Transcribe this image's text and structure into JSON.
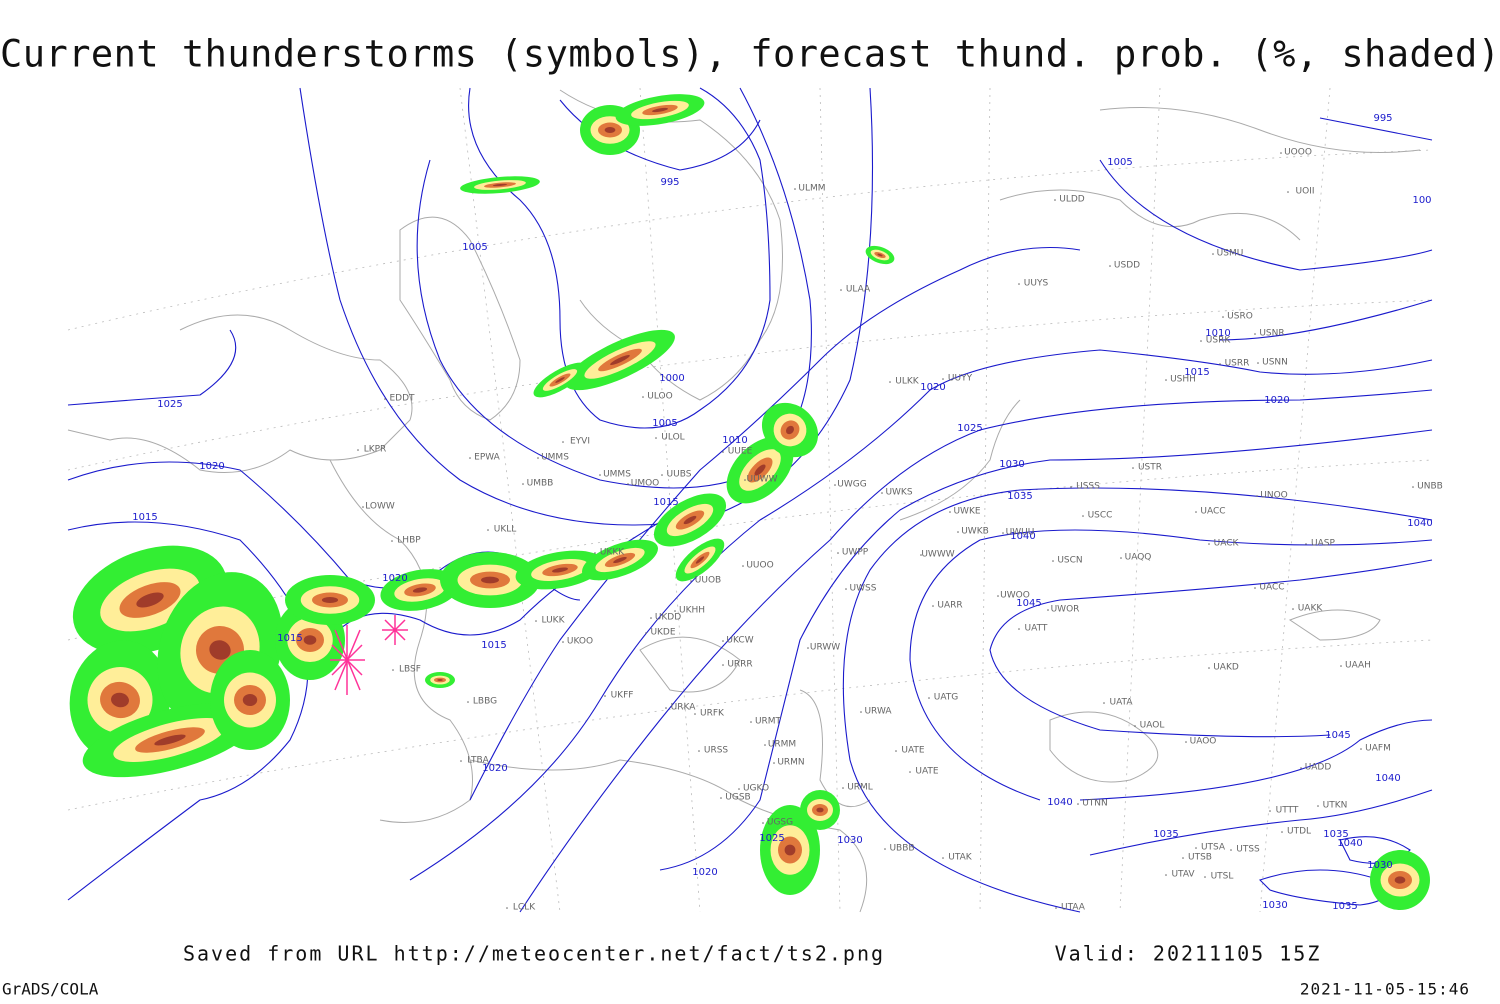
{
  "title": "Current thunderstorms (symbols), forecast thund. prob. (%, shaded)",
  "footer": {
    "saved": "Saved from URL http://meteocenter.net/fact/ts2.png",
    "valid": "Valid: 20211105 15Z",
    "software": "GrADS/COLA",
    "timestamp": "2021-11-05-15:46"
  },
  "isobar_labels": [
    "995",
    "995",
    "1005",
    "1005",
    "1000",
    "1005",
    "1010",
    "1015",
    "1015",
    "1015",
    "1015",
    "1020",
    "1020",
    "1020",
    "1020",
    "1025",
    "1025",
    "1020",
    "1010",
    "1015",
    "1020",
    "1030",
    "1035",
    "1040",
    "1045",
    "1040",
    "1035",
    "1030",
    "1025",
    "1045",
    "1040",
    "1035",
    "1040",
    "1030",
    "1030",
    "1035",
    "1040",
    "100"
  ],
  "stations": [
    "ULMM",
    "ULDD",
    "UOOO",
    "UOII",
    "USDD",
    "USMU",
    "ULAA",
    "UUYS",
    "USRO",
    "USRK",
    "USNR",
    "UUYY",
    "USHH",
    "USRR",
    "USNN",
    "ULKK",
    "ULOL",
    "ULOO",
    "EDDT",
    "EYVI",
    "EPWA",
    "UMMS",
    "UMMS",
    "UMOO",
    "UUBS",
    "LKPR",
    "UMBB",
    "UUEE",
    "USTR",
    "USSS",
    "UWGG",
    "UWKS",
    "UNOO",
    "UNBB",
    "UUWW",
    "LOWW",
    "LHBP",
    "UWKE",
    "USCC",
    "UACC",
    "UWKB",
    "UWUU",
    "UACK",
    "UASP",
    "UWPP",
    "UWWW",
    "USCN",
    "UAQQ",
    "UUOO",
    "UUOB",
    "UACC",
    "UKKK",
    "UKLL",
    "UWSS",
    "UWOO",
    "UWOR",
    "UAKK",
    "UARR",
    "UKHH",
    "UKDD",
    "UKDE",
    "UKOO",
    "LUKK",
    "URWW",
    "UATT",
    "UKCW",
    "URRR",
    "UAKD",
    "UAAH",
    "LBSF",
    "UKFF",
    "URKA",
    "URFK",
    "UATG",
    "UATA",
    "URMT",
    "URWA",
    "UAOL",
    "UAOO",
    "LBBG",
    "URSS",
    "URMM",
    "URMN",
    "UATE",
    "UATE",
    "UADD",
    "UAFM",
    "LTBA",
    "UGKO",
    "UGSB",
    "URML",
    "UTNN",
    "UTTT",
    "UTKN",
    "UGSG",
    "UBBB",
    "UTDL",
    "UTAK",
    "UTSA",
    "UTSS",
    "UTSB",
    "UTAV",
    "UTSL",
    "UTAA",
    "LCLK"
  ]
}
